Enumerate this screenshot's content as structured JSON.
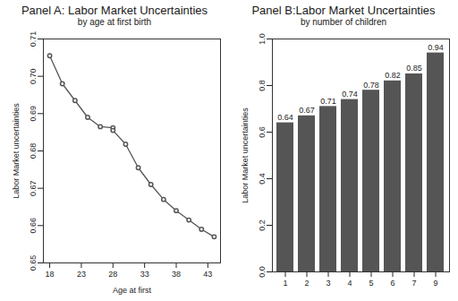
{
  "chart_data": [
    {
      "type": "line",
      "title": "Panel A: Labor Market Uncertainties",
      "subtitle": "by age at first birth",
      "x_label": "Age at first",
      "y_label": "Labor Market uncertainties",
      "x": [
        18,
        20,
        22,
        24,
        26,
        28,
        28,
        30,
        32,
        34,
        36,
        38,
        40,
        42,
        44
      ],
      "values": [
        0.7055,
        0.698,
        0.6935,
        0.689,
        0.6865,
        0.6862,
        0.6855,
        0.6818,
        0.6755,
        0.671,
        0.667,
        0.664,
        0.6615,
        0.659,
        0.657
      ],
      "color": "#555555",
      "marker": "circle",
      "xlim": [
        17,
        45
      ],
      "xticks": [
        18,
        23,
        28,
        33,
        38,
        43
      ],
      "ylim": [
        0.65,
        0.71
      ],
      "yticks": [
        0.65,
        0.66,
        0.67,
        0.68,
        0.69,
        {
          "value": 0.7,
          "label": "0.70"
        },
        0.71
      ],
      "grid": false
    },
    {
      "type": "bar",
      "title": "Panel B:Labor Market Uncertainties",
      "subtitle": "by number of children",
      "y_label": "Labor Market uncertainties",
      "categories": [
        "1",
        "2",
        "3",
        "4",
        "5",
        "6",
        "7",
        "9"
      ],
      "values": [
        0.64,
        0.67,
        0.71,
        0.74,
        0.78,
        0.82,
        0.85,
        0.94
      ],
      "color": "#555555",
      "data_labels": true,
      "ylim": [
        0,
        1
      ],
      "yticks": [
        {
          "value": 0,
          "label": "0.0"
        },
        0.2,
        0.4,
        0.6,
        0.8,
        {
          "value": 1,
          "label": "1.0"
        }
      ],
      "grid": false
    }
  ]
}
